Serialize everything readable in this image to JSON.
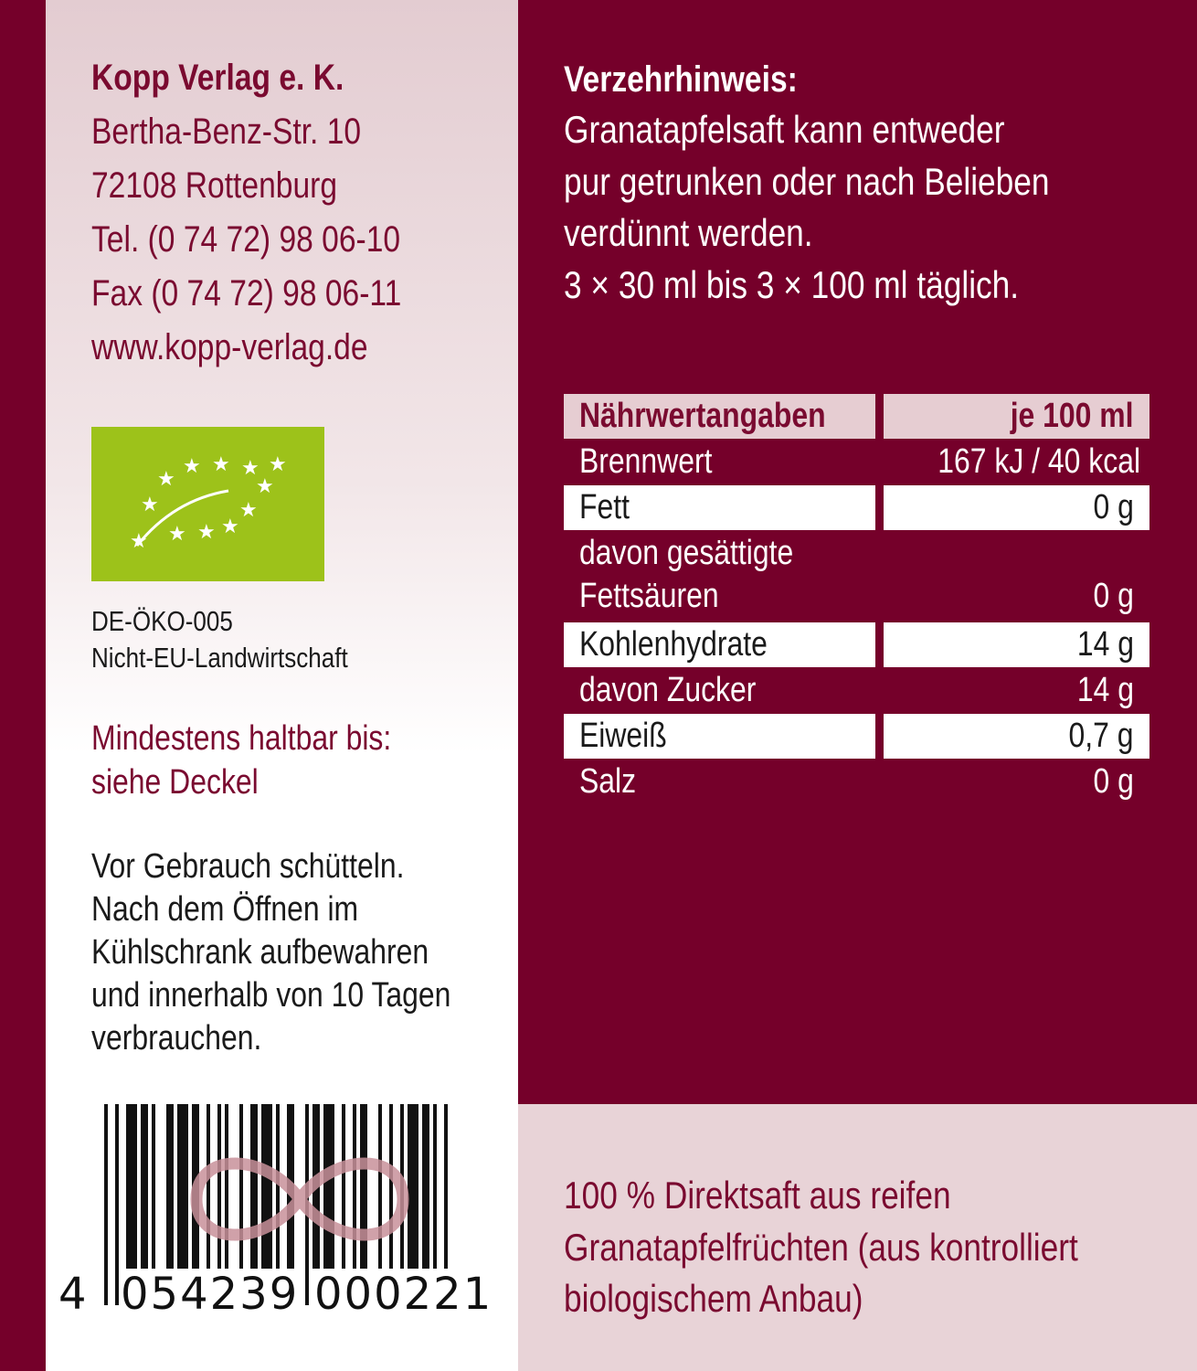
{
  "company": {
    "name": "Kopp Verlag e. K.",
    "street": "Bertha-Benz-Str. 10",
    "city": "72108 Rottenburg",
    "tel": "Tel. (0 74 72) 98 06-10",
    "fax": "Fax (0 74 72) 98 06-11",
    "web": "www.kopp-verlag.de"
  },
  "organic": {
    "code": "DE-ÖKO-005",
    "origin": "Nicht-EU-Landwirtschaft",
    "logo_color": "#9dc21a"
  },
  "best_before": {
    "line1": "Mindestens haltbar bis:",
    "line2": "siehe Deckel"
  },
  "storage": [
    "Vor Gebrauch schütteln.",
    "Nach dem Öffnen im",
    "Kühlschrank aufbewahren",
    "und innerhalb von 10 Tagen",
    "verbrauchen."
  ],
  "barcode": {
    "first": "4",
    "left": "054239",
    "right": "000221"
  },
  "usage": {
    "title": "Verzehrhinweis:",
    "lines": [
      "Granatapfelsaft kann entweder",
      "pur getrunken oder nach Belieben",
      "verdünnt werden.",
      "3 × 30 ml bis 3 × 100 ml täglich."
    ]
  },
  "nutrition": {
    "header": [
      "Nährwertangaben",
      "je 100 ml"
    ],
    "rows": [
      [
        "Brennwert",
        "167 kJ / 40 kcal"
      ],
      [
        "Fett",
        "0 g"
      ],
      [
        "davon gesättigte",
        "Fettsäuren",
        "0 g"
      ],
      [
        "Kohlenhydrate",
        "14 g"
      ],
      [
        "davon Zucker",
        "14 g"
      ],
      [
        "Eiweiß",
        "0,7 g"
      ],
      [
        "Salz",
        "0 g"
      ]
    ]
  },
  "description": [
    "100 % Direktsaft aus reifen",
    "Granatapfelfrüchten (aus kontrolliert",
    "biologischem Anbau)"
  ],
  "colors": {
    "maroon": "#75002a",
    "pink": "#e6cdd2"
  }
}
